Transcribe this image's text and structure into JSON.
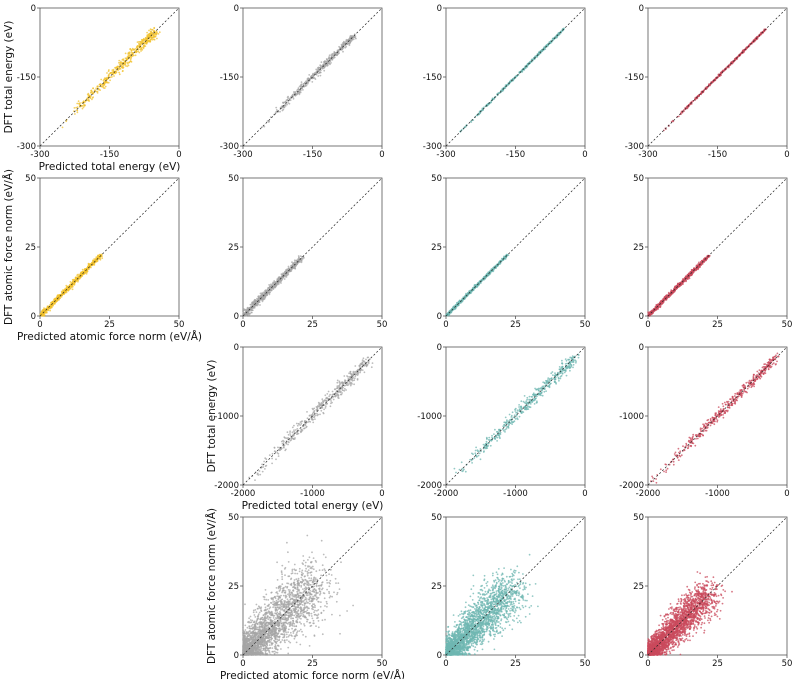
{
  "colors": {
    "background": "#ffffff",
    "axis": "#555555",
    "diagonal": "#222222",
    "series": [
      "#f2c12e",
      "#a6a6a6",
      "#6fb7b2",
      "#c94a5c"
    ]
  },
  "chart_data": [
    {
      "id": "p-r1-c1",
      "type": "scatter",
      "row": 1,
      "col": 1,
      "quantity": "energy",
      "dataset": "small",
      "color_index": 0,
      "xlim": [
        -300,
        0
      ],
      "ylim": [
        -300,
        0
      ],
      "xticks": [
        "-300",
        "-150",
        "0"
      ],
      "yticks": [
        "-300",
        "-150",
        "0"
      ],
      "xlabel": "Predicted total energy (eV)",
      "ylabel": "DFT total energy (eV)",
      "diagonal": true,
      "point_range": [
        -250,
        -50
      ],
      "spread": 0.03
    },
    {
      "id": "p-r1-c2",
      "type": "scatter",
      "row": 1,
      "col": 2,
      "quantity": "energy",
      "dataset": "small",
      "color_index": 1,
      "xlim": [
        -300,
        0
      ],
      "ylim": [
        -300,
        0
      ],
      "xticks": [
        "-300",
        "-150",
        "0"
      ],
      "yticks": [
        "-300",
        "-150",
        "0"
      ],
      "xlabel": "",
      "ylabel": "",
      "diagonal": true,
      "point_range": [
        -260,
        -60
      ],
      "spread": 0.02
    },
    {
      "id": "p-r1-c3",
      "type": "scatter",
      "row": 1,
      "col": 3,
      "quantity": "energy",
      "dataset": "small",
      "color_index": 2,
      "xlim": [
        -300,
        0
      ],
      "ylim": [
        -300,
        0
      ],
      "xticks": [
        "-300",
        "-150",
        "0"
      ],
      "yticks": [
        "-300",
        "-150",
        "0"
      ],
      "xlabel": "",
      "ylabel": "",
      "diagonal": true,
      "point_range": [
        -270,
        -45
      ],
      "spread": 0.006
    },
    {
      "id": "p-r1-c4",
      "type": "scatter",
      "row": 1,
      "col": 4,
      "quantity": "energy",
      "dataset": "small",
      "color_index": 3,
      "xlim": [
        -300,
        0
      ],
      "ylim": [
        -300,
        0
      ],
      "xticks": [
        "-300",
        "-150",
        "0"
      ],
      "yticks": [
        "-300",
        "-150",
        "0"
      ],
      "xlabel": "",
      "ylabel": "",
      "diagonal": true,
      "point_range": [
        -270,
        -45
      ],
      "spread": 0.006
    },
    {
      "id": "p-r2-c1",
      "type": "scatter",
      "row": 2,
      "col": 1,
      "quantity": "force",
      "dataset": "small",
      "color_index": 0,
      "xlim": [
        0,
        50
      ],
      "ylim": [
        0,
        50
      ],
      "xticks": [
        "0",
        "25",
        "50"
      ],
      "yticks": [
        "0",
        "25",
        "50"
      ],
      "xlabel": "Predicted atomic force norm (eV/Å)",
      "ylabel": "DFT atomic force norm (eV/Å)",
      "diagonal": true,
      "point_range": [
        0,
        22
      ],
      "spread": 0.015
    },
    {
      "id": "p-r2-c2",
      "type": "scatter",
      "row": 2,
      "col": 2,
      "quantity": "force",
      "dataset": "small",
      "color_index": 1,
      "xlim": [
        0,
        50
      ],
      "ylim": [
        0,
        50
      ],
      "xticks": [
        "0",
        "25",
        "50"
      ],
      "yticks": [
        "0",
        "25",
        "50"
      ],
      "xlabel": "",
      "ylabel": "",
      "diagonal": true,
      "point_range": [
        0,
        21
      ],
      "spread": 0.02
    },
    {
      "id": "p-r2-c3",
      "type": "scatter",
      "row": 2,
      "col": 3,
      "quantity": "force",
      "dataset": "small",
      "color_index": 2,
      "xlim": [
        0,
        50
      ],
      "ylim": [
        0,
        50
      ],
      "xticks": [
        "0",
        "25",
        "50"
      ],
      "yticks": [
        "0",
        "25",
        "50"
      ],
      "xlabel": "",
      "ylabel": "",
      "diagonal": true,
      "point_range": [
        0,
        22
      ],
      "spread": 0.008
    },
    {
      "id": "p-r2-c4",
      "type": "scatter",
      "row": 2,
      "col": 4,
      "quantity": "force",
      "dataset": "small",
      "color_index": 3,
      "xlim": [
        0,
        50
      ],
      "ylim": [
        0,
        50
      ],
      "xticks": [
        "0",
        "25",
        "50"
      ],
      "yticks": [
        "0",
        "25",
        "50"
      ],
      "xlabel": "",
      "ylabel": "",
      "diagonal": true,
      "point_range": [
        0,
        22
      ],
      "spread": 0.012
    },
    {
      "id": "p-r3-c2",
      "type": "scatter",
      "row": 3,
      "col": 2,
      "quantity": "energy",
      "dataset": "large",
      "color_index": 1,
      "xlim": [
        -2000,
        0
      ],
      "ylim": [
        -2000,
        0
      ],
      "xticks": [
        "-2000",
        "-1000",
        "0"
      ],
      "yticks": [
        "-2000",
        "-1000",
        "0"
      ],
      "xlabel": "Predicted total energy (eV)",
      "ylabel": "DFT total energy (eV)",
      "diagonal": true,
      "point_range": [
        -1900,
        -200
      ],
      "spread": 0.04
    },
    {
      "id": "p-r3-c3",
      "type": "scatter",
      "row": 3,
      "col": 3,
      "quantity": "energy",
      "dataset": "large",
      "color_index": 2,
      "xlim": [
        -2000,
        0
      ],
      "ylim": [
        -2000,
        0
      ],
      "xticks": [
        "-2000",
        "-1000",
        "0"
      ],
      "yticks": [
        "-2000",
        "-1000",
        "0"
      ],
      "xlabel": "",
      "ylabel": "",
      "diagonal": true,
      "point_range": [
        -1900,
        -150
      ],
      "spread": 0.035
    },
    {
      "id": "p-r3-c4",
      "type": "scatter",
      "row": 3,
      "col": 4,
      "quantity": "energy",
      "dataset": "large",
      "color_index": 3,
      "xlim": [
        -2000,
        0
      ],
      "ylim": [
        -2000,
        0
      ],
      "xticks": [
        "-2000",
        "-1000",
        "0"
      ],
      "yticks": [
        "-2000",
        "-1000",
        "0"
      ],
      "xlabel": "",
      "ylabel": "",
      "diagonal": true,
      "point_range": [
        -1950,
        -150
      ],
      "spread": 0.03
    },
    {
      "id": "p-r4-c2",
      "type": "scatter",
      "row": 4,
      "col": 2,
      "quantity": "force",
      "dataset": "large",
      "color_index": 1,
      "xlim": [
        0,
        50
      ],
      "ylim": [
        0,
        50
      ],
      "xticks": [
        "0",
        "25",
        "50"
      ],
      "yticks": [
        "0",
        "25",
        "50"
      ],
      "xlabel": "Predicted atomic force norm (eV/Å)",
      "ylabel": "DFT atomic force norm (eV/Å)",
      "diagonal": true,
      "point_range": [
        0,
        26
      ],
      "spread": 0.2
    },
    {
      "id": "p-r4-c3",
      "type": "scatter",
      "row": 4,
      "col": 3,
      "quantity": "force",
      "dataset": "large",
      "color_index": 2,
      "xlim": [
        0,
        50
      ],
      "ylim": [
        0,
        50
      ],
      "xticks": [
        "0",
        "25",
        "50"
      ],
      "yticks": [
        "0",
        "25",
        "50"
      ],
      "xlabel": "",
      "ylabel": "",
      "diagonal": true,
      "point_range": [
        0,
        24
      ],
      "spread": 0.16
    },
    {
      "id": "p-r4-c4",
      "type": "scatter",
      "row": 4,
      "col": 4,
      "quantity": "force",
      "dataset": "large",
      "color_index": 3,
      "xlim": [
        0,
        50
      ],
      "ylim": [
        0,
        50
      ],
      "xticks": [
        "0",
        "25",
        "50"
      ],
      "yticks": [
        "0",
        "25",
        "50"
      ],
      "xlabel": "",
      "ylabel": "",
      "diagonal": true,
      "point_range": [
        0,
        22
      ],
      "spread": 0.12
    }
  ]
}
